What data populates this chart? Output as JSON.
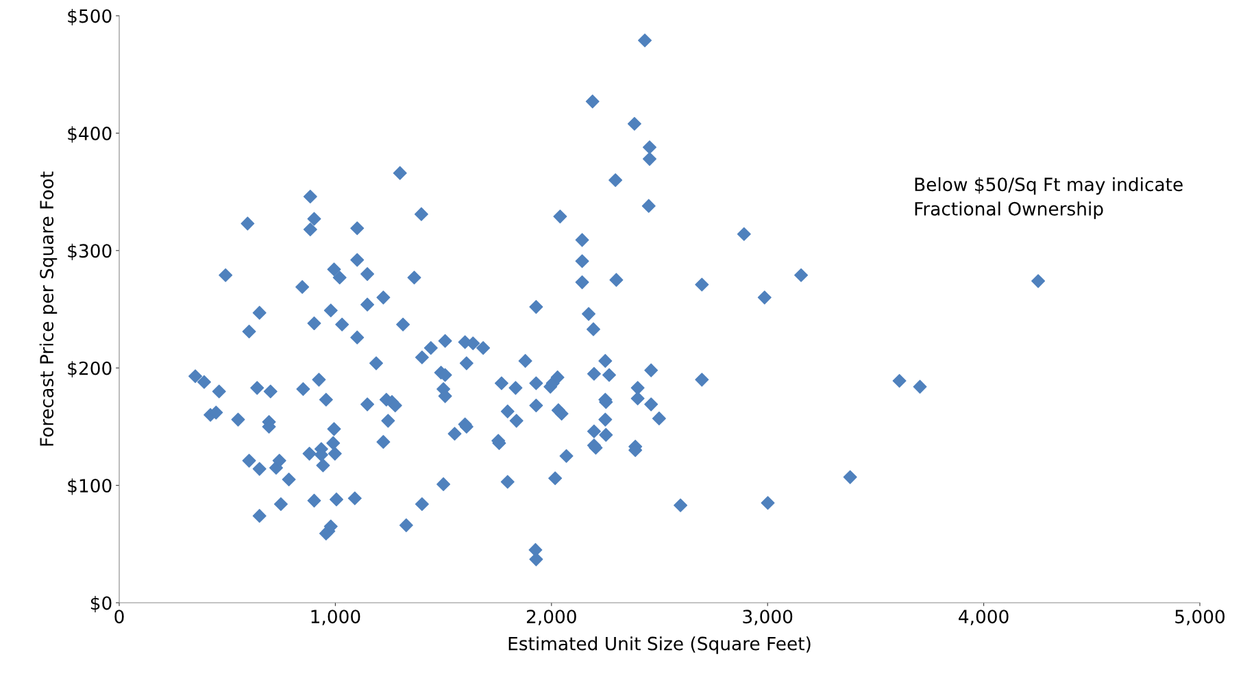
{
  "chart_data": {
    "type": "scatter",
    "xlabel": "Estimated Unit Size (Square Feet)",
    "ylabel": "Forecast Price per Square Foot",
    "annotations": [
      "Below $50/Sq Ft may indicate\nFractional Ownership"
    ],
    "marker": "diamond",
    "grid": false,
    "xlim": [
      0,
      5000
    ],
    "xticks": [
      0,
      {
        "value": 1000,
        "label": "1,000"
      },
      {
        "value": 2000,
        "label": "2,000"
      },
      {
        "value": 3000,
        "label": "3,000"
      },
      {
        "value": 4000,
        "label": "4,000"
      },
      {
        "value": 5000,
        "label": "5,000"
      }
    ],
    "ylim": [
      0,
      500
    ],
    "yticks": [
      {
        "value": 0,
        "label": "$0"
      },
      {
        "value": 100,
        "label": "$100"
      },
      {
        "value": 200,
        "label": "$200"
      },
      {
        "value": 300,
        "label": "$300"
      },
      {
        "value": 400,
        "label": "$400"
      },
      {
        "value": 500,
        "label": "$500"
      }
    ],
    "series": [
      {
        "color": "#4f81bd",
        "x": [
          352,
          393,
          462,
          422,
          448,
          492,
          550,
          594,
          601,
          601,
          638,
          649,
          649,
          649,
          700,
          693,
          693,
          726,
          741,
          748,
          785,
          847,
          851,
          884,
          884,
          902,
          880,
          902,
          902,
          924,
          935,
          935,
          943,
          957,
          979,
          957,
          968,
          979,
          994,
          994,
          990,
          998,
          1005,
          1020,
          1031,
          1101,
          1101,
          1101,
          1090,
          1148,
          1148,
          1148,
          1189,
          1222,
          1222,
          1236,
          1244,
          1262,
          1277,
          1299,
          1313,
          1328,
          1365,
          1398,
          1401,
          1401,
          1442,
          1508,
          1489,
          1508,
          1500,
          1508,
          1500,
          1552,
          1600,
          1607,
          1600,
          1607,
          1637,
          1684,
          1754,
          1758,
          1769,
          1797,
          1797,
          1834,
          1838,
          1879,
          1929,
          1929,
          1929,
          1926,
          1929,
          1995,
          2006,
          2028,
          2017,
          2032,
          2047,
          2040,
          2069,
          2142,
          2142,
          2142,
          2172,
          2190,
          2194,
          2197,
          2197,
          2197,
          2205,
          2249,
          2249,
          2252,
          2249,
          2252,
          2267,
          2296,
          2300,
          2384,
          2388,
          2388,
          2399,
          2399,
          2432,
          2454,
          2454,
          2450,
          2461,
          2461,
          2498,
          2597,
          2696,
          2696,
          2891,
          2986,
          3001,
          3155,
          3382,
          3610,
          3705,
          4252
        ],
        "values": [
          193,
          188,
          180,
          160,
          162,
          279,
          156,
          323,
          231,
          121,
          183,
          247,
          114,
          74,
          180,
          154,
          150,
          115,
          121,
          84,
          105,
          269,
          182,
          318,
          346,
          327,
          127,
          238,
          87,
          190,
          131,
          126,
          117,
          173,
          249,
          59,
          61,
          65,
          284,
          148,
          136,
          127,
          88,
          277,
          237,
          319,
          292,
          226,
          89,
          280,
          254,
          169,
          204,
          260,
          137,
          173,
          155,
          171,
          168,
          366,
          237,
          66,
          277,
          331,
          209,
          84,
          217,
          223,
          196,
          194,
          182,
          176,
          101,
          144,
          222,
          204,
          152,
          150,
          221,
          217,
          138,
          136,
          187,
          163,
          103,
          183,
          155,
          206,
          252,
          187,
          168,
          45,
          37,
          184,
          187,
          192,
          106,
          164,
          161,
          329,
          125,
          309,
          291,
          273,
          246,
          427,
          233,
          195,
          146,
          134,
          132,
          206,
          173,
          171,
          156,
          143,
          194,
          360,
          275,
          408,
          133,
          130,
          183,
          174,
          479,
          388,
          378,
          338,
          198,
          169,
          157,
          83,
          271,
          190,
          314,
          260,
          85,
          279,
          107,
          189,
          184,
          274
        ]
      }
    ]
  }
}
